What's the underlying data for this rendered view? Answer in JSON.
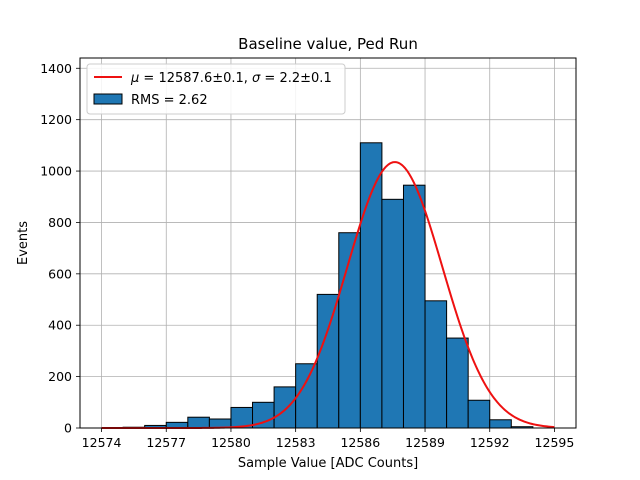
{
  "chart_data": {
    "type": "bar",
    "title": "Baseline value, Ped Run",
    "xlabel": "Sample Value [ADC Counts]",
    "ylabel": "Events",
    "xlim": [
      12573,
      12596
    ],
    "ylim": [
      0,
      1440
    ],
    "x_ticks": [
      12574,
      12577,
      12580,
      12583,
      12586,
      12589,
      12592,
      12595
    ],
    "y_ticks": [
      0,
      200,
      400,
      600,
      800,
      1000,
      1200,
      1400
    ],
    "grid": true,
    "legend_position": "top-left",
    "histogram": {
      "name": "RMS = 2.62",
      "color": "#1f77b4",
      "edge_color": "#000000",
      "bin_edges": [
        12574,
        12575,
        12576,
        12577,
        12578,
        12579,
        12580,
        12581,
        12582,
        12583,
        12584,
        12585,
        12586,
        12587,
        12588,
        12589,
        12590,
        12591,
        12592,
        12593,
        12594,
        12595
      ],
      "counts": [
        0,
        3,
        10,
        22,
        42,
        35,
        80,
        100,
        160,
        250,
        520,
        760,
        1110,
        890,
        945,
        495,
        350,
        108,
        32,
        5,
        0
      ]
    },
    "fit": {
      "name_mu": "12587.6±0.1",
      "name_sigma": "2.2±0.1",
      "color": "#ee1111",
      "mu": 12587.6,
      "sigma": 2.2,
      "amplitude": 1035,
      "x_range": [
        12574,
        12595
      ]
    }
  }
}
